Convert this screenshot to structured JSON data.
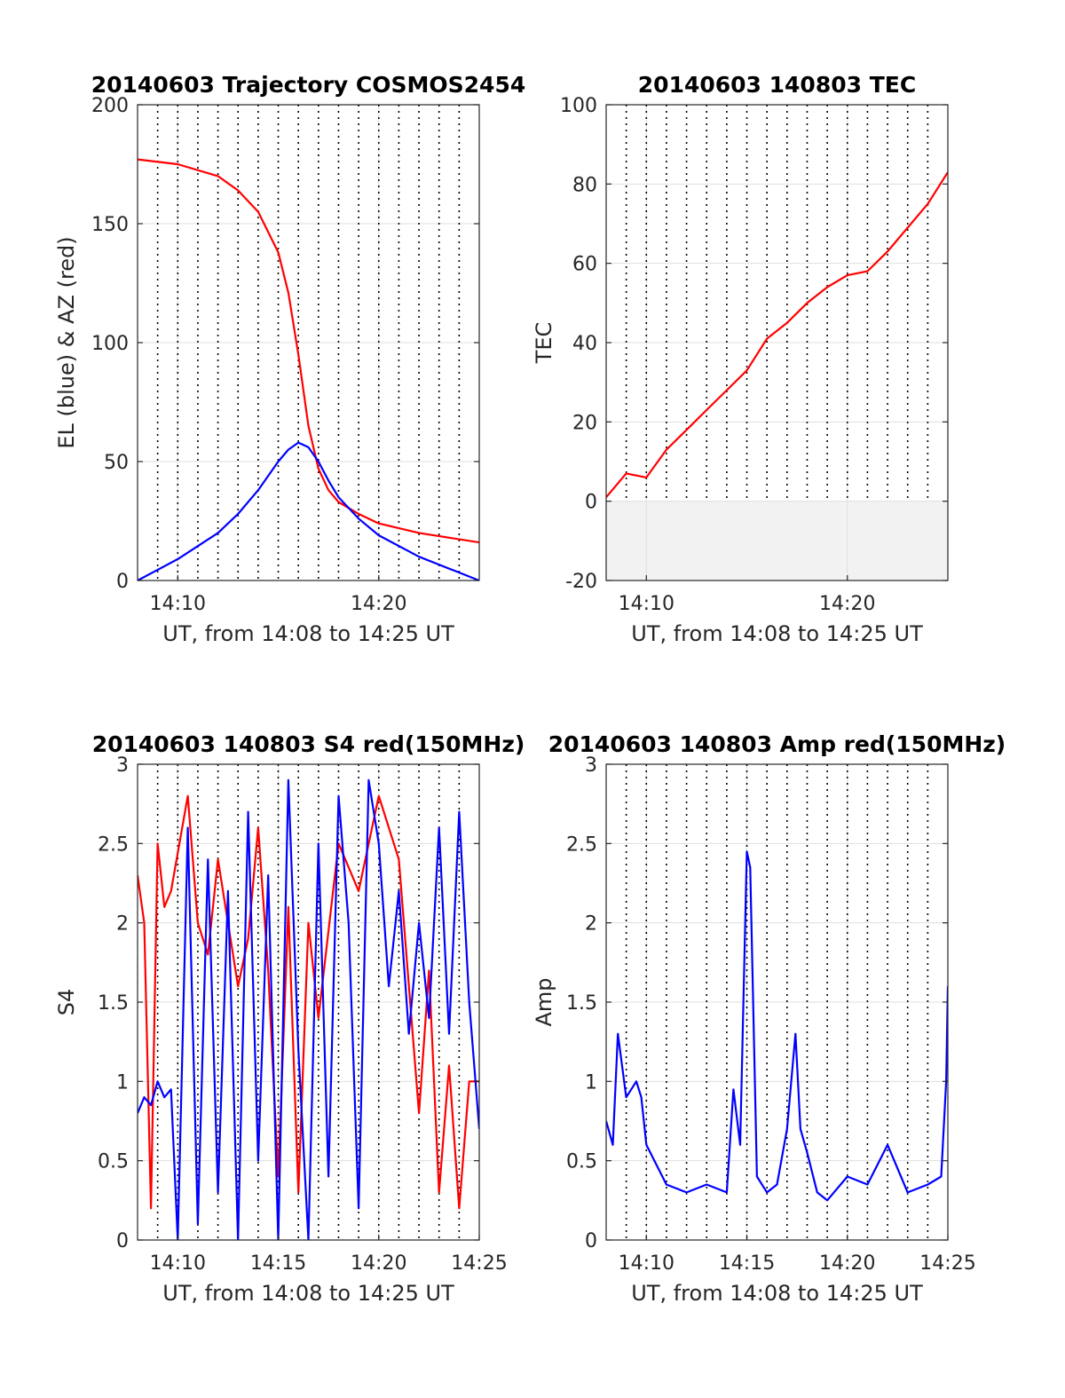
{
  "chart_data": [
    {
      "type": "line",
      "title": "20140603 Trajectory COSMOS2454",
      "xlabel": "UT, from 14:08 to 14:25 UT",
      "ylabel": "EL (blue) & AZ (red)",
      "xlim": [
        "14:08",
        "14:25"
      ],
      "ylim": [
        0,
        200
      ],
      "x_ticks": [
        "14:10",
        "14:20"
      ],
      "y_ticks": [
        "0",
        "50",
        "100",
        "150",
        "200"
      ],
      "grid": true,
      "minute_markers": true,
      "colors": {
        "EL": "#0000ff",
        "AZ": "#ff0000"
      },
      "series": [
        {
          "key": "AZ",
          "color": "#ff0000",
          "x": [
            "14:08",
            "14:10",
            "14:12",
            "14:13",
            "14:14",
            "14:15",
            "14:15:30",
            "14:16",
            "14:16:30",
            "14:17",
            "14:17:30",
            "14:18",
            "14:19",
            "14:20",
            "14:22",
            "14:25"
          ],
          "values": [
            177,
            175,
            170,
            164,
            155,
            138,
            121,
            95,
            65,
            47,
            38,
            33,
            28,
            24,
            20,
            16
          ]
        },
        {
          "key": "EL",
          "color": "#0000ff",
          "x": [
            "14:08",
            "14:10",
            "14:12",
            "14:13",
            "14:14",
            "14:15",
            "14:15:30",
            "14:16",
            "14:16:30",
            "14:17",
            "14:17:30",
            "14:18",
            "14:19",
            "14:20",
            "14:22",
            "14:25"
          ],
          "values": [
            0,
            9,
            20,
            28,
            38,
            50,
            55,
            58,
            56,
            50,
            42,
            35,
            26,
            19,
            10,
            0
          ]
        }
      ]
    },
    {
      "type": "line",
      "title": "20140603 140803 TEC",
      "xlabel": "UT, from 14:08 to 14:25 UT",
      "ylabel": "TEC",
      "xlim": [
        "14:08",
        "14:25"
      ],
      "ylim": [
        -20,
        100
      ],
      "x_ticks": [
        "14:10",
        "14:20"
      ],
      "y_ticks": [
        "-20",
        "0",
        "20",
        "40",
        "60",
        "80",
        "100"
      ],
      "grid": true,
      "minute_markers": true,
      "shaded_band_y": [
        -20,
        0
      ],
      "series": [
        {
          "key": "TEC",
          "color": "#ff0000",
          "x": [
            "14:08",
            "14:09",
            "14:10",
            "14:11",
            "14:12",
            "14:13",
            "14:14",
            "14:15",
            "14:16",
            "14:17",
            "14:18",
            "14:19",
            "14:20",
            "14:21",
            "14:22",
            "14:23",
            "14:24",
            "14:25"
          ],
          "values": [
            1,
            7,
            6,
            13,
            18,
            23,
            28,
            33,
            41,
            45,
            50,
            54,
            57,
            58,
            63,
            69,
            75,
            83
          ]
        }
      ]
    },
    {
      "type": "line",
      "title": "20140603 140803 S4 red(150MHz)",
      "xlabel": "UT, from 14:08 to 14:25 UT",
      "ylabel": "S4",
      "xlim": [
        "14:08",
        "14:25"
      ],
      "ylim": [
        0,
        3
      ],
      "x_ticks": [
        "14:10",
        "14:15",
        "14:20",
        "14:25"
      ],
      "y_ticks": [
        "0",
        "0.5",
        "1",
        "1.5",
        "2",
        "2.5",
        "3"
      ],
      "grid": true,
      "minute_markers": true,
      "series": [
        {
          "key": "S4-red",
          "color": "#ff0000",
          "x": [
            "14:08",
            "14:08:20",
            "14:08:40",
            "14:09",
            "14:09:20",
            "14:09:40",
            "14:10:30",
            "14:11",
            "14:11:30",
            "14:12",
            "14:12:30",
            "14:13",
            "14:13:30",
            "14:14",
            "14:14:30",
            "14:15",
            "14:15:30",
            "14:16",
            "14:16:30",
            "14:17",
            "14:18",
            "14:19",
            "14:20",
            "14:21",
            "14:22",
            "14:22:30",
            "14:23",
            "14:23:30",
            "14:24",
            "14:24:30",
            "14:25"
          ],
          "values": [
            2.3,
            2.0,
            0.2,
            2.5,
            2.1,
            2.2,
            2.8,
            2.0,
            1.8,
            2.4,
            2.0,
            1.6,
            1.9,
            2.6,
            1.7,
            0.4,
            2.1,
            0.3,
            2.0,
            1.4,
            2.5,
            2.2,
            2.8,
            2.4,
            0.8,
            1.7,
            0.3,
            1.1,
            0.2,
            1.0,
            1.0
          ]
        },
        {
          "key": "S4-blue",
          "color": "#0000ff",
          "x": [
            "14:08",
            "14:08:20",
            "14:08:40",
            "14:09",
            "14:09:20",
            "14:09:40",
            "14:10",
            "14:10:30",
            "14:11",
            "14:11:30",
            "14:12",
            "14:12:30",
            "14:13",
            "14:13:30",
            "14:14",
            "14:14:30",
            "14:15",
            "14:15:30",
            "14:16",
            "14:16:30",
            "14:17",
            "14:17:30",
            "14:18",
            "14:18:30",
            "14:19",
            "14:19:30",
            "14:20",
            "14:20:30",
            "14:21",
            "14:21:30",
            "14:22",
            "14:22:30",
            "14:23",
            "14:23:30",
            "14:24",
            "14:24:30",
            "14:25"
          ],
          "values": [
            0.8,
            0.9,
            0.85,
            1.0,
            0.9,
            0.95,
            0.0,
            2.6,
            0.1,
            2.4,
            0.3,
            2.2,
            0.0,
            2.7,
            0.5,
            2.3,
            0.0,
            2.9,
            1.2,
            0.0,
            2.5,
            0.4,
            2.8,
            2.0,
            0.2,
            2.9,
            2.5,
            1.6,
            2.2,
            1.3,
            2.0,
            1.4,
            2.6,
            1.3,
            2.7,
            1.5,
            0.7
          ]
        }
      ]
    },
    {
      "type": "line",
      "title": "20140603 140803 Amp red(150MHz)",
      "xlabel": "UT, from 14:08 to 14:25 UT",
      "ylabel": "Amp",
      "xlim": [
        "14:08",
        "14:25"
      ],
      "ylim": [
        0,
        3
      ],
      "x_ticks": [
        "14:10",
        "14:15",
        "14:20",
        "14:25"
      ],
      "y_ticks": [
        "0",
        "0.5",
        "1",
        "1.5",
        "2",
        "2.5",
        "3"
      ],
      "grid": true,
      "minute_markers": true,
      "series": [
        {
          "key": "Amp",
          "color": "#0000ff",
          "x": [
            "14:08",
            "14:08:20",
            "14:08:35",
            "14:09",
            "14:09:30",
            "14:09:45",
            "14:10",
            "14:11",
            "14:12",
            "14:13",
            "14:14",
            "14:14:20",
            "14:14:40",
            "14:15",
            "14:15:10",
            "14:15:30",
            "14:16",
            "14:16:30",
            "14:17",
            "14:17:25",
            "14:17:40",
            "14:18",
            "14:18:30",
            "14:19",
            "14:20",
            "14:21",
            "14:22",
            "14:23",
            "14:24",
            "14:24:40",
            "14:24:55",
            "14:25"
          ],
          "values": [
            0.75,
            0.6,
            1.3,
            0.9,
            1.0,
            0.9,
            0.6,
            0.35,
            0.3,
            0.35,
            0.3,
            0.95,
            0.6,
            2.45,
            2.35,
            0.4,
            0.3,
            0.35,
            0.7,
            1.3,
            0.7,
            0.55,
            0.3,
            0.25,
            0.4,
            0.35,
            0.6,
            0.3,
            0.35,
            0.4,
            1.0,
            1.6
          ]
        }
      ]
    }
  ]
}
